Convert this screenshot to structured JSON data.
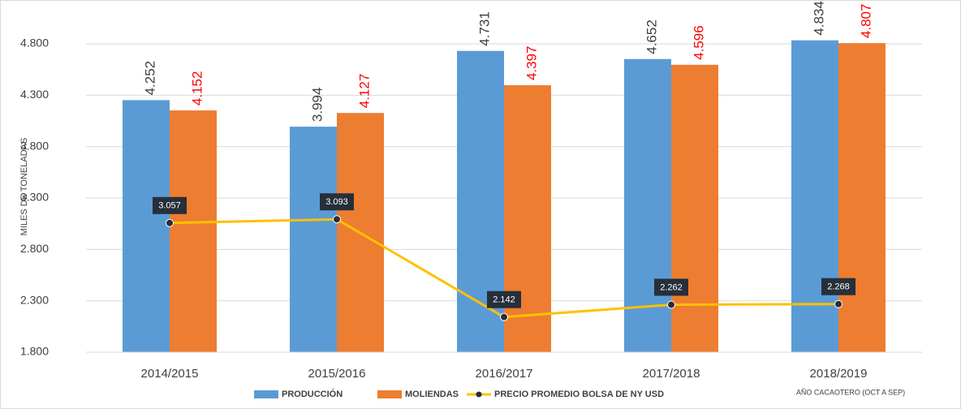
{
  "chart_data": {
    "type": "bar",
    "y_label": "MILES DE TONELADAS",
    "x_label": "AÑO CACAOTERO (OCT A SEP)",
    "categories": [
      "2014/2015",
      "2015/2016",
      "2016/2017",
      "2017/2018",
      "2018/2019"
    ],
    "series": [
      {
        "name": "PRODUCCIÓN",
        "type": "bar",
        "color": "#5b9bd5",
        "values": [
          4252,
          3994,
          4731,
          4652,
          4834
        ],
        "value_labels": [
          "4.252",
          "3.994",
          "4.731",
          "4.652",
          "4.834"
        ],
        "label_color": "#404040"
      },
      {
        "name": "MOLIENDAS",
        "type": "bar",
        "color": "#ed7d31",
        "values": [
          4152,
          4127,
          4397,
          4596,
          4807
        ],
        "value_labels": [
          "4.152",
          "4.127",
          "4.397",
          "4.596",
          "4.807"
        ],
        "label_color": "#ff0000"
      },
      {
        "name": "PRECIO PROMEDIO BOLSA DE NY USD",
        "type": "line",
        "color": "#ffc000",
        "values": [
          3057,
          3093,
          2142,
          2262,
          2268
        ],
        "value_labels": [
          "3.057",
          "3.093",
          "2.142",
          "2.262",
          "2.268"
        ]
      }
    ],
    "ylim": [
      1800,
      5100
    ],
    "yticks": [
      {
        "value": 1800,
        "label": "1.800"
      },
      {
        "value": 2300,
        "label": "2.300"
      },
      {
        "value": 2800,
        "label": "2.800"
      },
      {
        "value": 3300,
        "label": "3.300"
      },
      {
        "value": 3800,
        "label": "3.800"
      },
      {
        "value": 4300,
        "label": "4.300"
      },
      {
        "value": 4800,
        "label": "4.800"
      }
    ],
    "grid": true,
    "legend": "bottom"
  }
}
